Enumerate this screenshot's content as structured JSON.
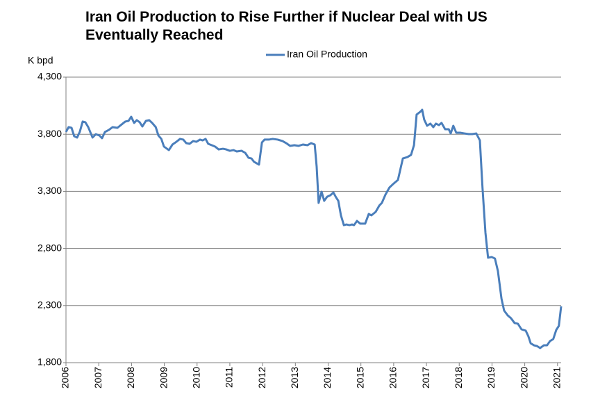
{
  "chart_data": {
    "type": "line",
    "title": "Iran Oil Production to Rise Further if Nuclear Deal with US Eventually Reached",
    "y_label": "K bpd",
    "series": [
      {
        "name": "Iran Oil Production",
        "color": "#4a7ebb",
        "x": [
          2006.0,
          2006.08,
          2006.17,
          2006.25,
          2006.34,
          2006.42,
          2006.51,
          2006.59,
          2006.68,
          2006.81,
          2006.91,
          2007.02,
          2007.1,
          2007.19,
          2007.31,
          2007.42,
          2007.57,
          2007.7,
          2007.81,
          2007.91,
          2007.99,
          2008.08,
          2008.16,
          2008.25,
          2008.33,
          2008.44,
          2008.54,
          2008.63,
          2008.74,
          2008.82,
          2008.91,
          2008.99,
          2009.14,
          2009.25,
          2009.37,
          2009.48,
          2009.58,
          2009.67,
          2009.77,
          2009.88,
          2009.98,
          2010.09,
          2010.17,
          2010.26,
          2010.34,
          2010.45,
          2010.55,
          2010.66,
          2010.79,
          2010.89,
          2011.0,
          2011.11,
          2011.21,
          2011.36,
          2011.47,
          2011.57,
          2011.66,
          2011.74,
          2011.89,
          2011.98,
          2012.06,
          2012.19,
          2012.31,
          2012.46,
          2012.61,
          2012.72,
          2012.84,
          2012.97,
          2013.1,
          2013.23,
          2013.37,
          2013.48,
          2013.59,
          2013.65,
          2013.71,
          2013.8,
          2013.88,
          2013.97,
          2014.07,
          2014.16,
          2014.24,
          2014.31,
          2014.39,
          2014.48,
          2014.56,
          2014.65,
          2014.73,
          2014.79,
          2014.88,
          2014.98,
          2015.13,
          2015.24,
          2015.32,
          2015.45,
          2015.56,
          2015.64,
          2015.75,
          2015.87,
          2015.98,
          2016.13,
          2016.28,
          2016.42,
          2016.53,
          2016.62,
          2016.7,
          2016.81,
          2016.87,
          2016.93,
          2017.02,
          2017.12,
          2017.21,
          2017.29,
          2017.38,
          2017.46,
          2017.57,
          2017.68,
          2017.74,
          2017.82,
          2017.91,
          2018.04,
          2018.16,
          2018.29,
          2018.4,
          2018.52,
          2018.63,
          2018.71,
          2018.8,
          2018.88,
          2018.99,
          2019.09,
          2019.18,
          2019.29,
          2019.37,
          2019.48,
          2019.58,
          2019.69,
          2019.79,
          2019.9,
          2020.03,
          2020.11,
          2020.18,
          2020.28,
          2020.37,
          2020.47,
          2020.58,
          2020.68,
          2020.77,
          2020.87,
          2020.96,
          2021.04,
          2021.11
        ],
        "values": [
          3820,
          3862,
          3856,
          3783,
          3771,
          3820,
          3911,
          3905,
          3862,
          3771,
          3800,
          3789,
          3765,
          3820,
          3838,
          3862,
          3856,
          3886,
          3911,
          3917,
          3953,
          3899,
          3923,
          3905,
          3868,
          3917,
          3923,
          3899,
          3862,
          3789,
          3759,
          3692,
          3661,
          3710,
          3734,
          3759,
          3753,
          3722,
          3716,
          3740,
          3734,
          3753,
          3746,
          3759,
          3716,
          3704,
          3692,
          3667,
          3673,
          3667,
          3655,
          3661,
          3649,
          3655,
          3637,
          3594,
          3588,
          3558,
          3534,
          3728,
          3753,
          3753,
          3759,
          3753,
          3740,
          3722,
          3698,
          3704,
          3698,
          3710,
          3704,
          3722,
          3710,
          3515,
          3199,
          3296,
          3217,
          3253,
          3266,
          3290,
          3248,
          3217,
          3090,
          3004,
          3010,
          3004,
          3010,
          3004,
          3041,
          3017,
          3017,
          3102,
          3090,
          3120,
          3175,
          3199,
          3272,
          3333,
          3363,
          3400,
          3588,
          3600,
          3619,
          3704,
          3972,
          3996,
          4014,
          3929,
          3874,
          3893,
          3862,
          3893,
          3880,
          3899,
          3844,
          3844,
          3807,
          3874,
          3813,
          3813,
          3807,
          3801,
          3801,
          3807,
          3746,
          3333,
          2938,
          2719,
          2725,
          2712,
          2603,
          2360,
          2256,
          2214,
          2189,
          2147,
          2141,
          2092,
          2080,
          2031,
          1970,
          1952,
          1946,
          1928,
          1952,
          1952,
          1989,
          2007,
          2086,
          2122,
          2293
        ]
      }
    ],
    "xlim": [
      2006,
      2021.11
    ],
    "xticks": [
      2006,
      2007,
      2008,
      2009,
      2010,
      2011,
      2012,
      2013,
      2014,
      2015,
      2016,
      2017,
      2018,
      2019,
      2020,
      2021
    ],
    "ylim": [
      1800,
      4300
    ],
    "yticks": [
      {
        "value": 1800,
        "label": "1,800"
      },
      {
        "value": 2300,
        "label": "2,300"
      },
      {
        "value": 2800,
        "label": "2,800"
      },
      {
        "value": 3300,
        "label": "3,300"
      },
      {
        "value": 3800,
        "label": "3,800"
      },
      {
        "value": 4300,
        "label": "4,300"
      }
    ],
    "grid": true,
    "legend": "top"
  }
}
